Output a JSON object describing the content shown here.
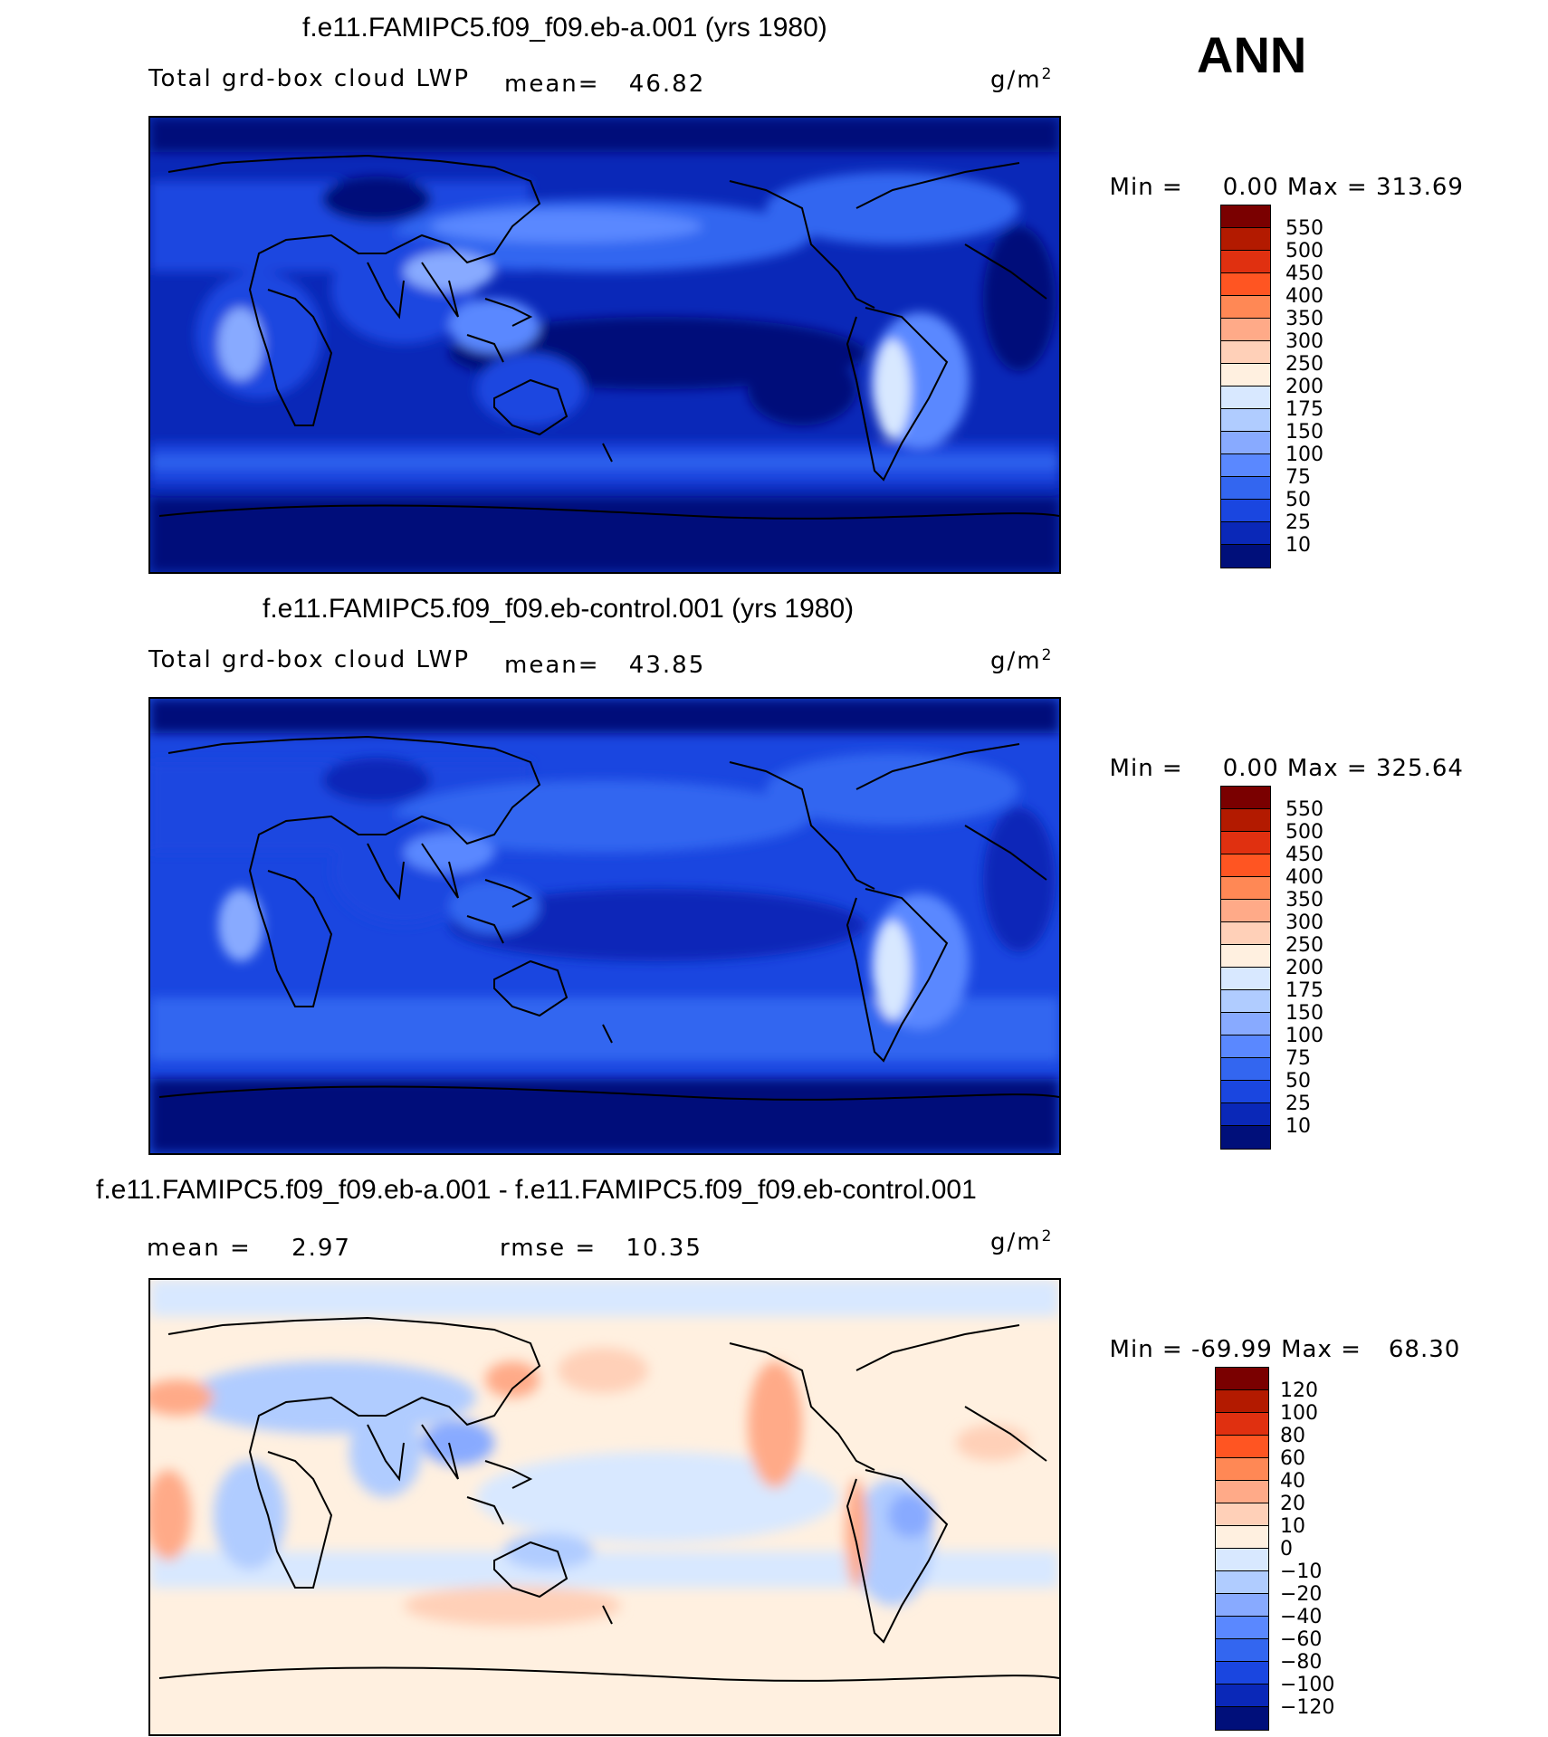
{
  "header": {
    "season": "ANN"
  },
  "panels": [
    {
      "title": "f.e11.FAMIPC5.f09_f09.eb-a.001 (yrs 1980)",
      "variable": "Total grd-box cloud LWP",
      "mean_label": "mean=",
      "mean_value": "46.82",
      "unit_base": "g/m",
      "unit_exp": "2",
      "min_label": "Min =",
      "min_value": "0.00",
      "max_label": "Max =",
      "max_value": "313.69",
      "colorbar_labels": [
        "550",
        "500",
        "450",
        "400",
        "350",
        "300",
        "250",
        "200",
        "175",
        "150",
        "100",
        "75",
        "50",
        "25",
        "10"
      ]
    },
    {
      "title": "f.e11.FAMIPC5.f09_f09.eb-control.001 (yrs 1980)",
      "variable": "Total grd-box cloud LWP",
      "mean_label": "mean=",
      "mean_value": "43.85",
      "unit_base": "g/m",
      "unit_exp": "2",
      "min_label": "Min =",
      "min_value": "0.00",
      "max_label": "Max =",
      "max_value": "325.64",
      "colorbar_labels": [
        "550",
        "500",
        "450",
        "400",
        "350",
        "300",
        "250",
        "200",
        "175",
        "150",
        "100",
        "75",
        "50",
        "25",
        "10"
      ]
    },
    {
      "title": "f.e11.FAMIPC5.f09_f09.eb-a.001 - f.e11.FAMIPC5.f09_f09.eb-control.001",
      "mean_label": "mean =",
      "mean_value": "2.97",
      "rmse_label": "rmse =",
      "rmse_value": "10.35",
      "unit_base": "g/m",
      "unit_exp": "2",
      "min_label": "Min =",
      "min_value": "-69.99",
      "max_label": "Max =",
      "max_value": "68.30",
      "colorbar_labels": [
        "120",
        "100",
        "80",
        "60",
        "40",
        "20",
        "10",
        "0",
        "−10",
        "−20",
        "−40",
        "−60",
        "−80",
        "−100",
        "−120"
      ]
    }
  ],
  "colors": {
    "abs_scale": [
      "#7a0000",
      "#b31a00",
      "#e03010",
      "#ff5522",
      "#ff8855",
      "#ffaa88",
      "#ffd0b8",
      "#fff0e0",
      "#d8e8ff",
      "#b0ccff",
      "#88aaff",
      "#5a88ff",
      "#3366f0",
      "#1a46e0",
      "#0a28b8",
      "#000f7a"
    ],
    "diff_scale": [
      "#7a0000",
      "#b31a00",
      "#e03010",
      "#ff5522",
      "#ff8855",
      "#ffaa88",
      "#ffd0b8",
      "#fff0e0",
      "#d8e8ff",
      "#b0ccff",
      "#88aaff",
      "#5a88ff",
      "#3366f0",
      "#1a46e0",
      "#0a28b8",
      "#000f7a"
    ]
  }
}
